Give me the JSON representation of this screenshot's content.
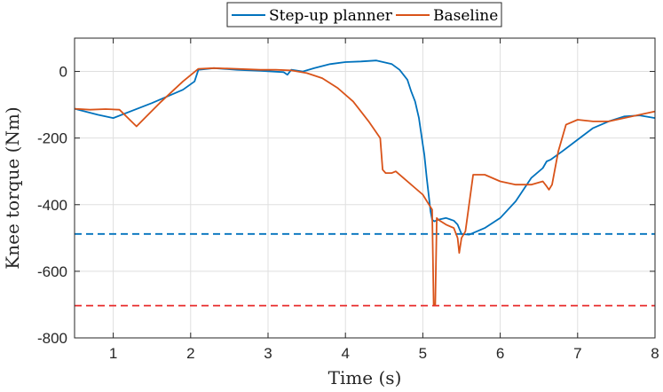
{
  "chart_data": {
    "type": "line",
    "xlabel": "Time (s)",
    "ylabel": "Knee torque (Nm)",
    "xlim": [
      0.5,
      8
    ],
    "ylim": [
      -800,
      100
    ],
    "xticks": [
      1,
      2,
      3,
      4,
      5,
      6,
      7,
      8
    ],
    "yticks": [
      0,
      -200,
      -400,
      -600,
      -800
    ],
    "grid": true,
    "legend_position": "top-center",
    "series": [
      {
        "name": "Step-up planner",
        "color": "#0072BD",
        "style": "solid",
        "x": [
          0.5,
          0.8,
          1.0,
          1.5,
          1.9,
          2.05,
          2.1,
          2.3,
          2.6,
          2.9,
          3.2,
          3.25,
          3.3,
          3.45,
          3.6,
          3.8,
          4.0,
          4.2,
          4.4,
          4.6,
          4.7,
          4.8,
          4.85,
          4.9,
          4.95,
          5.0,
          5.02,
          5.05,
          5.08,
          5.1,
          5.12,
          5.15,
          5.2,
          5.3,
          5.4,
          5.45,
          5.5,
          5.6,
          5.8,
          6.0,
          6.2,
          6.4,
          6.55,
          6.6,
          6.65,
          6.8,
          7.0,
          7.2,
          7.4,
          7.6,
          7.8,
          8.0
        ],
        "y": [
          -112,
          -130,
          -140,
          -95,
          -55,
          -30,
          5,
          10,
          5,
          2,
          -2,
          -10,
          5,
          0,
          10,
          22,
          28,
          30,
          33,
          22,
          5,
          -25,
          -60,
          -90,
          -140,
          -220,
          -250,
          -320,
          -380,
          -420,
          -445,
          -450,
          -445,
          -440,
          -448,
          -460,
          -488,
          -490,
          -470,
          -440,
          -390,
          -320,
          -290,
          -270,
          -265,
          -240,
          -205,
          -170,
          -150,
          -135,
          -132,
          -140
        ]
      },
      {
        "name": "Baseline",
        "color": "#D95319",
        "style": "solid",
        "x": [
          0.5,
          0.7,
          0.9,
          1.08,
          1.3,
          1.6,
          1.9,
          2.1,
          2.3,
          2.6,
          2.9,
          3.1,
          3.3,
          3.5,
          3.7,
          3.9,
          4.1,
          4.3,
          4.45,
          4.48,
          4.52,
          4.6,
          4.65,
          4.75,
          4.9,
          5.0,
          5.08,
          5.12,
          5.14,
          5.16,
          5.18,
          5.2,
          5.3,
          5.4,
          5.45,
          5.47,
          5.5,
          5.55,
          5.65,
          5.8,
          6.0,
          6.2,
          6.4,
          6.55,
          6.6,
          6.63,
          6.67,
          6.75,
          6.85,
          7.0,
          7.2,
          7.4,
          7.6,
          7.8,
          8.0
        ],
        "y": [
          -112,
          -115,
          -113,
          -115,
          -165,
          -95,
          -30,
          8,
          10,
          8,
          5,
          5,
          3,
          -5,
          -20,
          -50,
          -90,
          -150,
          -200,
          -295,
          -305,
          -305,
          -300,
          -320,
          -350,
          -370,
          -400,
          -415,
          -700,
          -700,
          -440,
          -445,
          -460,
          -470,
          -500,
          -545,
          -500,
          -480,
          -310,
          -310,
          -330,
          -340,
          -340,
          -330,
          -345,
          -355,
          -340,
          -240,
          -160,
          -145,
          -150,
          -150,
          -140,
          -130,
          -120
        ]
      },
      {
        "name": "",
        "color": "#0072BD",
        "style": "dashed",
        "x": [
          0.5,
          8.0
        ],
        "y": [
          -488,
          -488
        ]
      },
      {
        "name": "",
        "color": "#E82B2B",
        "style": "dashed",
        "x": [
          0.5,
          8.0
        ],
        "y": [
          -703,
          -703
        ]
      }
    ]
  }
}
